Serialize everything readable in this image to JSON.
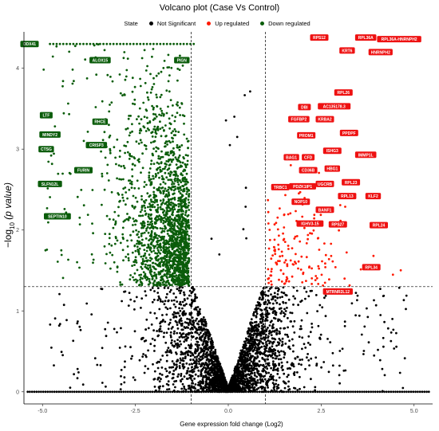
{
  "chart_data": {
    "type": "scatter",
    "title": "Volcano plot (Case Vs Control)",
    "xlabel": "Gene expression fold change (Log2)",
    "ylabel_main": "−log",
    "ylabel_sub": "10",
    "ylabel_tail": " (p value)",
    "xlim": [
      -5.5,
      5.5
    ],
    "ylim": [
      -0.15,
      4.45
    ],
    "x_ticks": [
      -5.0,
      -2.5,
      0.0,
      2.5,
      5.0
    ],
    "x_tick_labels": [
      "-5.0",
      "-2.5",
      "0.0",
      "2.5",
      "5.0"
    ],
    "y_ticks": [
      0,
      1,
      2,
      3,
      4
    ],
    "y_tick_labels": [
      "0",
      "1",
      "2",
      "3",
      "4"
    ],
    "thresholds": {
      "x": [
        -1,
        1
      ],
      "y": 1.3
    },
    "legend": {
      "title": "State",
      "placement": "top",
      "entries": [
        {
          "name": "Not Significant",
          "color": "#000000"
        },
        {
          "name": "Up regulated",
          "color": "#ff1a00"
        },
        {
          "name": "Down regulated",
          "color": "#0a5c0a"
        }
      ]
    },
    "colors": {
      "not_significant": "#000000",
      "up": "#ff1a00",
      "down": "#0a5c0a",
      "up_label_bg": "#ee1111",
      "down_label_bg": "#0a5c0a"
    },
    "up_labels": [
      {
        "gene": "RPS12",
        "x": 2.45,
        "y": 4.38
      },
      {
        "gene": "RPL36A",
        "x": 3.7,
        "y": 4.38
      },
      {
        "gene": "RPL36A-HNRNPH2",
        "x": 4.6,
        "y": 4.36
      },
      {
        "gene": "KRT6",
        "x": 3.2,
        "y": 4.22
      },
      {
        "gene": "HNRNPH2",
        "x": 4.1,
        "y": 4.2
      },
      {
        "gene": "RPL26",
        "x": 3.1,
        "y": 3.7
      },
      {
        "gene": "DBI",
        "x": 2.05,
        "y": 3.52
      },
      {
        "gene": "AC135178.3",
        "x": 2.85,
        "y": 3.53
      },
      {
        "gene": "FGFBP2",
        "x": 1.9,
        "y": 3.37
      },
      {
        "gene": "KRBA2",
        "x": 2.6,
        "y": 3.37
      },
      {
        "gene": "PROM1",
        "x": 2.1,
        "y": 3.17
      },
      {
        "gene": "PPDPF",
        "x": 3.25,
        "y": 3.2
      },
      {
        "gene": "ISHG3",
        "x": 2.8,
        "y": 2.98
      },
      {
        "gene": "BAG1",
        "x": 1.7,
        "y": 2.9
      },
      {
        "gene": "CFD",
        "x": 2.15,
        "y": 2.9
      },
      {
        "gene": "IMMP1L",
        "x": 3.7,
        "y": 2.93
      },
      {
        "gene": "CD36B",
        "x": 2.15,
        "y": 2.74
      },
      {
        "gene": "HBG1",
        "x": 2.8,
        "y": 2.76
      },
      {
        "gene": "UGCRB",
        "x": 2.6,
        "y": 2.57
      },
      {
        "gene": "RPL23",
        "x": 3.3,
        "y": 2.59
      },
      {
        "gene": "TRBC1",
        "x": 1.4,
        "y": 2.53
      },
      {
        "gene": "PDZK1IP1",
        "x": 2.0,
        "y": 2.54
      },
      {
        "gene": "RPL13",
        "x": 3.2,
        "y": 2.42
      },
      {
        "gene": "KLF2",
        "x": 3.9,
        "y": 2.42
      },
      {
        "gene": "NOP10",
        "x": 1.95,
        "y": 2.35
      },
      {
        "gene": "BANF1",
        "x": 2.6,
        "y": 2.25
      },
      {
        "gene": "IGHV3-15",
        "x": 2.2,
        "y": 2.08
      },
      {
        "gene": "RPS27",
        "x": 2.95,
        "y": 2.07
      },
      {
        "gene": "RPL24",
        "x": 4.05,
        "y": 2.06
      },
      {
        "gene": "RPL34",
        "x": 3.85,
        "y": 1.54
      },
      {
        "gene": "MTRNR2L12",
        "x": 2.95,
        "y": 1.24
      }
    ],
    "down_labels": [
      {
        "gene": "DDX41",
        "x": -5.35,
        "y": 4.3
      },
      {
        "gene": "ALOX15",
        "x": -3.45,
        "y": 4.1
      },
      {
        "gene": "PIGN",
        "x": -1.25,
        "y": 4.1
      },
      {
        "gene": "LTF",
        "x": -4.9,
        "y": 3.42
      },
      {
        "gene": "RHCE",
        "x": -3.45,
        "y": 3.34
      },
      {
        "gene": "MINDY2",
        "x": -4.8,
        "y": 3.18
      },
      {
        "gene": "CRISP3",
        "x": -3.55,
        "y": 3.05
      },
      {
        "gene": "CTSG",
        "x": -4.9,
        "y": 3.0
      },
      {
        "gene": "FURIN",
        "x": -3.9,
        "y": 2.74
      },
      {
        "gene": "SLFN12L",
        "x": -4.8,
        "y": 2.57
      },
      {
        "gene": "SEPTIN10",
        "x": -4.6,
        "y": 2.17
      }
    ]
  }
}
